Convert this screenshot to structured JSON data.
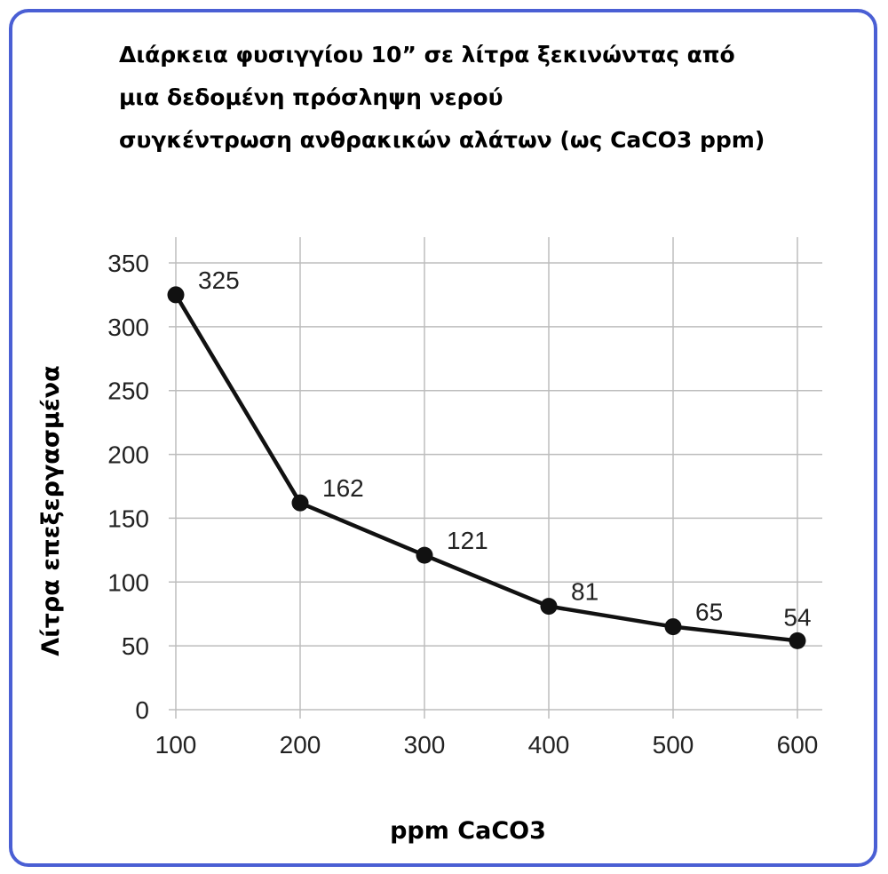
{
  "chart_data": {
    "type": "line",
    "title_lines": [
      "Διάρκεια φυσιγγίου 10” σε λίτρα ξεκινώντας από",
      "μια δεδομένη πρόσληψη νερού",
      "συγκέντρωση ανθρακικών αλάτων (ως CaCO3 ppm)"
    ],
    "xlabel": "ppm CaCO3",
    "ylabel": "Λίτρα επεξεργασμένα",
    "x": [
      100,
      200,
      300,
      400,
      500,
      600
    ],
    "y": [
      325,
      162,
      121,
      81,
      65,
      54
    ],
    "data_labels": [
      "325",
      "162",
      "121",
      "81",
      "65",
      "54"
    ],
    "x_ticks": [
      "100",
      "200",
      "300",
      "400",
      "500",
      "600"
    ],
    "y_ticks": [
      "0",
      "50",
      "100",
      "150",
      "200",
      "250",
      "300",
      "350"
    ],
    "xlim": [
      100,
      600
    ],
    "ylim": [
      0,
      350
    ],
    "grid": true,
    "line_color": "#111111",
    "frame_color": "#4a5fd4"
  }
}
